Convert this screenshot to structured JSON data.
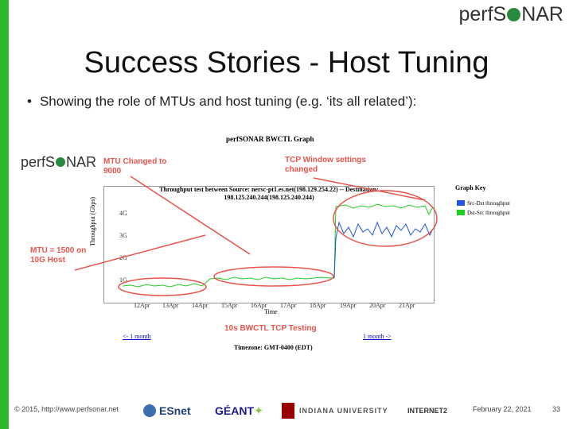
{
  "header": {
    "logo_text_left": "perfS",
    "logo_text_right": "NAR"
  },
  "slide": {
    "title": "Success Stories - Host Tuning",
    "bullet": "Showing the role of MTUs and host tuning (e.g. ‘its all related’):"
  },
  "graph": {
    "title": "perfSONAR BWCTL Graph",
    "plot_title_line1": "Throughput test between Source: nersc-pt1.es.net(198.129.254.22) -- Destination:",
    "plot_title_line2": "198.125.240.244(198.125.240.244)",
    "ylabel": "Throughput (Gbps)",
    "xlabel": "Time",
    "yticks": [
      "4G",
      "3G",
      "2G",
      "1G"
    ],
    "xticks": [
      "12Apr",
      "13Apr",
      "14Apr",
      "15Apr",
      "16Apr",
      "17Apr",
      "18Apr",
      "19Apr",
      "20Apr",
      "21Apr"
    ],
    "key_title": "Graph Key",
    "key_items": [
      {
        "label": "Src-Dst throughput",
        "color": "#2255dd"
      },
      {
        "label": "Dst-Src throughput",
        "color": "#22cc22"
      }
    ],
    "annotations": {
      "mtu_changed_line1": "MTU Changed to",
      "mtu_changed_line2": "9000",
      "tcp_window_line1": "TCP Window settings",
      "tcp_window_line2": "changed",
      "mtu_1500_line1": "MTU = 1500 on",
      "mtu_1500_line2": "10G Host"
    },
    "testing_label": "10s BWCTL TCP Testing",
    "prev_link": "<- 1 month",
    "next_link": "1 month ->",
    "timezone": "Timezone: GMT-0400 (EDT)",
    "colors": {
      "annotation": "#e8554b",
      "src_dst": "#2255dd",
      "dst_src": "#22cc22"
    }
  },
  "footer": {
    "copyright": "© 2015, http://www.perfsonar.net",
    "logos": [
      "ESnet",
      "GÉANT",
      "INDIANA UNIVERSITY",
      "INTERNET2"
    ],
    "date": "February 22, 2021",
    "page": "33"
  }
}
